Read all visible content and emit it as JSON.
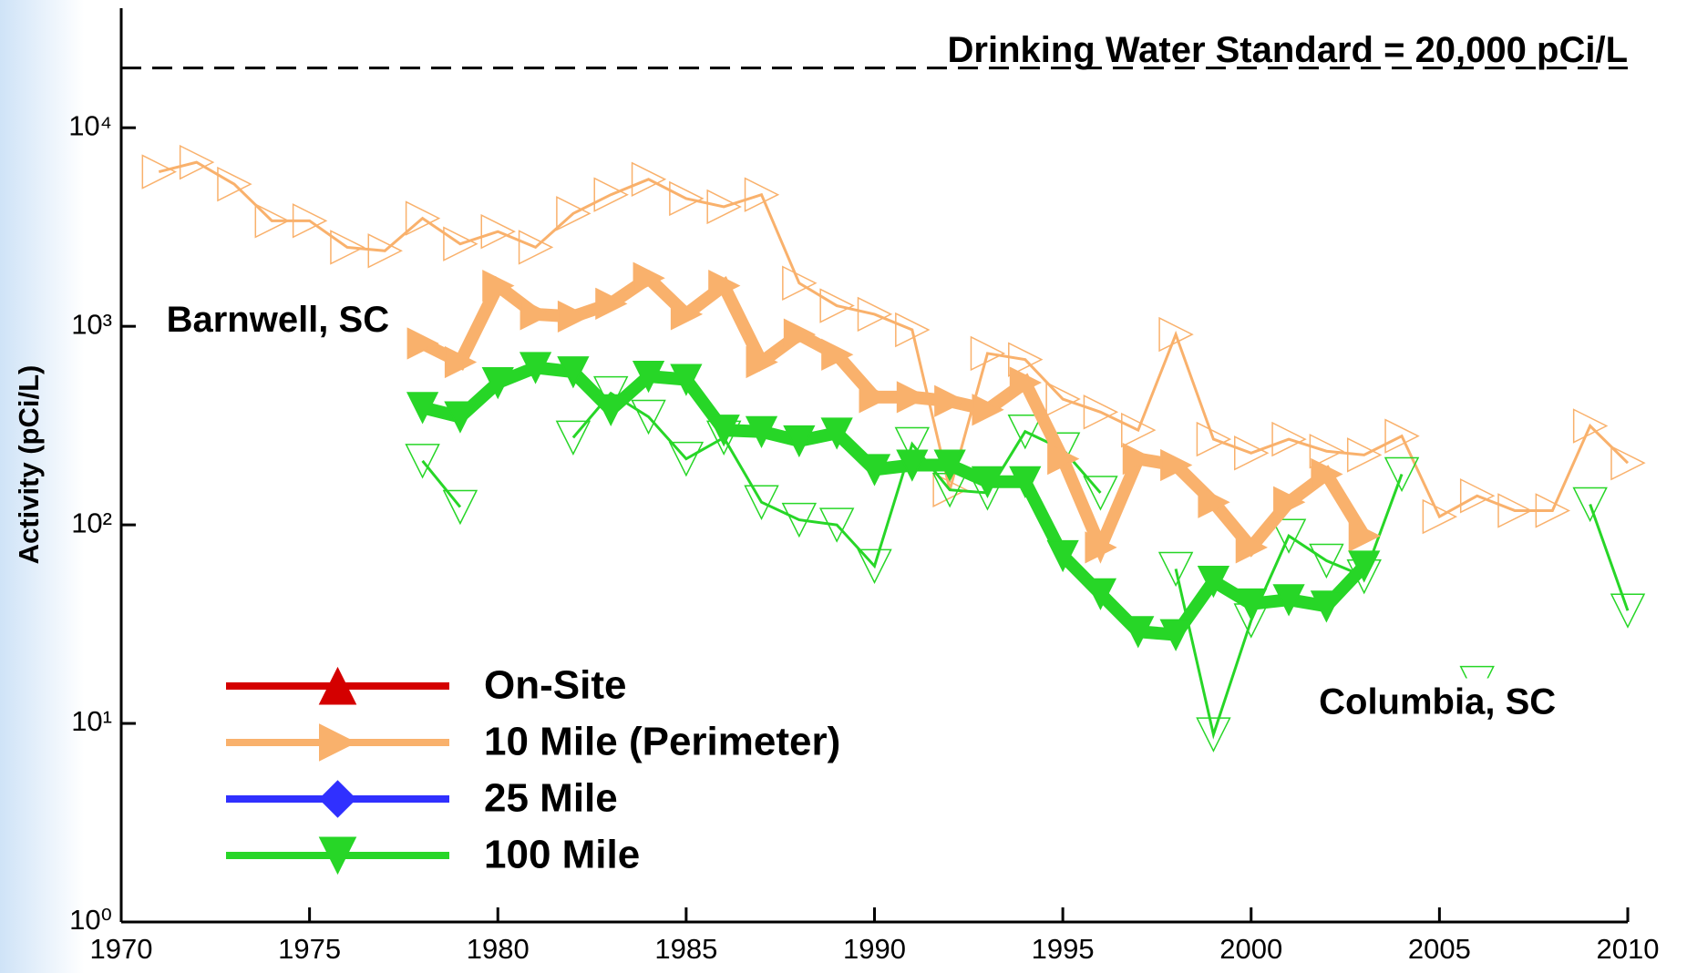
{
  "chart_data": {
    "type": "line",
    "y_label": "Activity (pCi/L)",
    "log_scale_y": true,
    "xlim": [
      1970,
      2010
    ],
    "xticks": [
      1970,
      1975,
      1980,
      1985,
      1990,
      1995,
      2000,
      2005,
      2010
    ],
    "ylim": [
      1,
      40000
    ],
    "yticks": [
      {
        "value": 1,
        "label": "10⁰"
      },
      {
        "value": 10,
        "label": "10¹"
      },
      {
        "value": 100,
        "label": "10²"
      },
      {
        "value": 1000,
        "label": "10³"
      },
      {
        "value": 10000,
        "label": "10⁴"
      }
    ],
    "reference_line": {
      "value": 20000,
      "label": "Drinking Water Standard = 20,000 pCi/L"
    },
    "annotations": [
      {
        "text": "Barnwell, SC",
        "x": 1971.2,
        "y": 1050
      },
      {
        "text": "Columbia, SC",
        "x": 2001.8,
        "y": 12.5
      }
    ],
    "legend": "lower left",
    "x": [
      1971,
      1972,
      1973,
      1974,
      1975,
      1976,
      1977,
      1978,
      1979,
      1980,
      1981,
      1982,
      1983,
      1984,
      1985,
      1986,
      1987,
      1988,
      1989,
      1990,
      1991,
      1992,
      1993,
      1994,
      1995,
      1996,
      1997,
      1998,
      1999,
      2000,
      2001,
      2002,
      2003,
      2004,
      2005,
      2006,
      2007,
      2008,
      2009,
      2010
    ],
    "series": [
      {
        "name": "On-Site",
        "color": "#d40000",
        "marker": "triangle-up",
        "filled": true,
        "line_width": "thick",
        "values": [
          null,
          null,
          null,
          null,
          null,
          null,
          null,
          null,
          null,
          null,
          null,
          null,
          null,
          null,
          null,
          null,
          null,
          null,
          null,
          null,
          null,
          null,
          null,
          null,
          null,
          null,
          null,
          null,
          null,
          null,
          null,
          null,
          null,
          null,
          null,
          null,
          null,
          null,
          null,
          null
        ]
      },
      {
        "name": "10 Mile (Perimeter)",
        "color": "#f9b16c",
        "marker": "triangle-right",
        "filled": true,
        "line_width": "thick",
        "values": [
          null,
          null,
          null,
          null,
          null,
          null,
          null,
          820,
          660,
          1600,
          1150,
          1120,
          1300,
          1750,
          1150,
          1600,
          660,
          910,
          720,
          440,
          440,
          420,
          380,
          520,
          215,
          77,
          215,
          200,
          130,
          77,
          130,
          180,
          88,
          null,
          null,
          null,
          null,
          null,
          null,
          null
        ]
      },
      {
        "name": "25 Mile",
        "color": "#3030ff",
        "marker": "diamond",
        "filled": true,
        "line_width": "thick",
        "values": [
          null,
          null,
          null,
          null,
          null,
          null,
          null,
          null,
          null,
          null,
          null,
          null,
          null,
          null,
          null,
          null,
          null,
          null,
          null,
          null,
          null,
          null,
          null,
          null,
          null,
          null,
          null,
          null,
          null,
          null,
          null,
          null,
          null,
          null,
          null,
          null,
          null,
          null,
          null,
          null
        ]
      },
      {
        "name": "100 Mile",
        "color": "#27d627",
        "marker": "triangle-down",
        "filled": true,
        "line_width": "thick",
        "values": [
          null,
          null,
          null,
          null,
          null,
          null,
          null,
          390,
          350,
          520,
          620,
          590,
          380,
          560,
          540,
          300,
          295,
          265,
          290,
          190,
          200,
          200,
          165,
          165,
          70,
          45,
          29,
          28,
          52,
          40,
          42,
          39,
          62,
          null,
          null,
          null,
          null,
          null,
          null,
          null
        ]
      },
      {
        "color": "#f9b16c",
        "marker": "triangle-right",
        "filled": false,
        "line_width": "thin",
        "values": [
          6000,
          6700,
          5200,
          3400,
          3400,
          2500,
          2400,
          3500,
          2600,
          3000,
          2500,
          3700,
          4600,
          5500,
          4400,
          4000,
          4600,
          1650,
          1270,
          1150,
          960,
          150,
          730,
          680,
          430,
          370,
          300,
          910,
          270,
          230,
          270,
          235,
          225,
          280,
          110,
          140,
          118,
          118,
          315,
          205
        ]
      },
      {
        "color": "#27d627",
        "marker": "triangle-down",
        "filled": false,
        "line_width": "thin",
        "values": [
          null,
          null,
          null,
          null,
          null,
          null,
          null,
          210,
          123,
          null,
          null,
          275,
          460,
          350,
          215,
          275,
          130,
          106,
          100,
          62,
          255,
          150,
          145,
          295,
          240,
          145,
          null,
          60,
          8.8,
          33,
          88,
          66,
          55,
          180,
          null,
          16,
          null,
          null,
          127,
          37
        ]
      }
    ]
  }
}
